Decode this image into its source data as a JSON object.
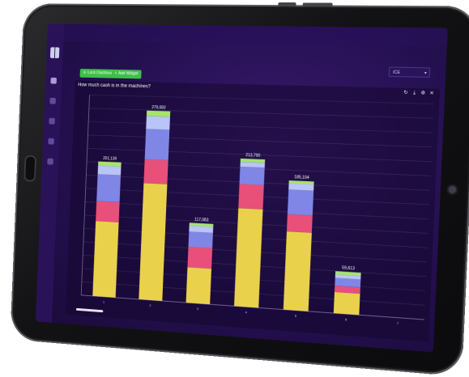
{
  "toolbar": {
    "lock_label": "Lock Dashboard",
    "add_label": "Add Widget",
    "selector_value": "ICE"
  },
  "widget": {
    "title": "How much cash is in the machines?"
  },
  "icons": {
    "refresh": "refresh-icon",
    "download": "download-icon",
    "settings": "gear-icon",
    "close": "close-icon"
  },
  "colors": {
    "screen_bg": "#241050",
    "sidebar_bg": "#2a1258",
    "button_green": "#3fbf4a",
    "series_yellow": "#e9d14c",
    "series_pink": "#e8507a",
    "series_blue": "#7f86e6",
    "series_light_blue": "#b9c4f7",
    "series_green": "#a6e46c"
  },
  "chart_data": {
    "type": "bar",
    "stacked": true,
    "categories": [
      "1",
      "2",
      "3",
      "4",
      "5",
      "6",
      "7"
    ],
    "totals_labels": [
      "201,139",
      "279,083",
      "117,083",
      "213,790",
      "185,104",
      "59,613",
      ""
    ],
    "series": [
      {
        "color": "#e9d14c",
        "values": [
          112000,
          172000,
          52000,
          142000,
          112000,
          30000,
          0
        ]
      },
      {
        "color": "#e8507a",
        "values": [
          30000,
          35000,
          30000,
          35000,
          25000,
          9000,
          0
        ]
      },
      {
        "color": "#7f86e6",
        "values": [
          40000,
          45000,
          22000,
          25000,
          35000,
          11000,
          0
        ]
      },
      {
        "color": "#b9c4f7",
        "values": [
          13000,
          19000,
          9000,
          7000,
          9000,
          5000,
          0
        ]
      },
      {
        "color": "#a6e46c",
        "values": [
          6139,
          8083,
          4083,
          4790,
          4104,
          4613,
          0
        ]
      }
    ],
    "ylim": [
      0,
      300000
    ],
    "grid": true
  }
}
